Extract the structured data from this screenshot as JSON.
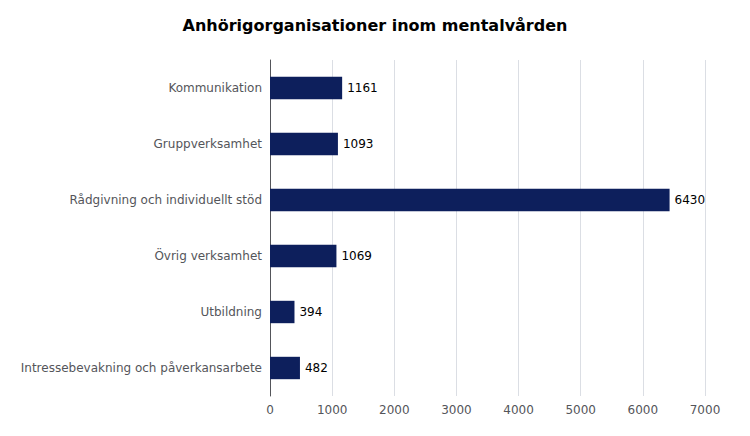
{
  "chart_data": {
    "type": "bar",
    "orientation": "horizontal",
    "title": "Anhörigorganisationer inom mentalvården",
    "categories": [
      "Kommunikation",
      "Gruppverksamhet",
      "Rådgivning och individuellt stöd",
      "Övrig verksamhet",
      "Utbildning",
      "Intressebevakning och påverkansarbete"
    ],
    "values": [
      1161,
      1093,
      6430,
      1069,
      394,
      482
    ],
    "color": "#0d1f5c",
    "xlim": [
      0,
      7000
    ],
    "xticks": [
      0,
      1000,
      2000,
      3000,
      4000,
      5000,
      6000,
      7000
    ],
    "grid": true,
    "data_labels": true
  }
}
